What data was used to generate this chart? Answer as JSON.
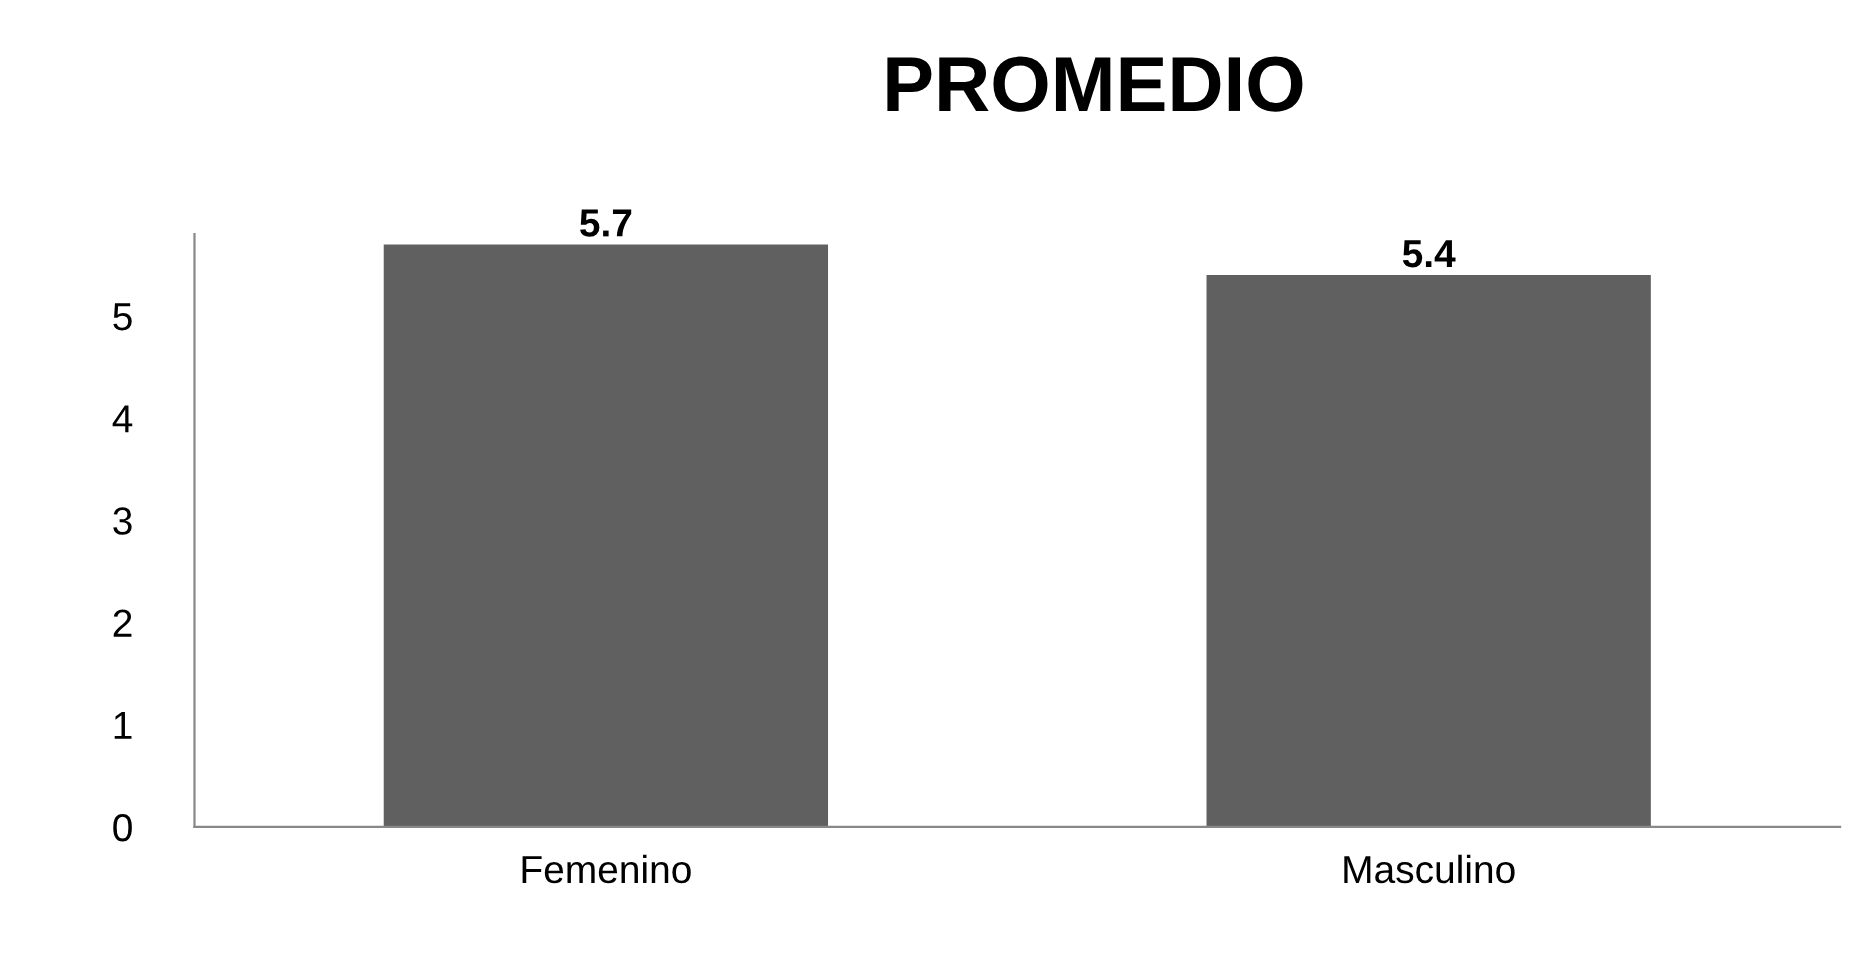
{
  "chart_data": {
    "type": "bar",
    "title": "PROMEDIO",
    "categories": [
      "Femenino",
      "Masculino"
    ],
    "values": [
      5.7,
      5.4
    ],
    "color": "#606060",
    "ylim": [
      0,
      5.8
    ],
    "yticks": [
      0,
      1,
      2,
      3,
      4,
      5
    ],
    "grid": false,
    "data_labels": true
  }
}
